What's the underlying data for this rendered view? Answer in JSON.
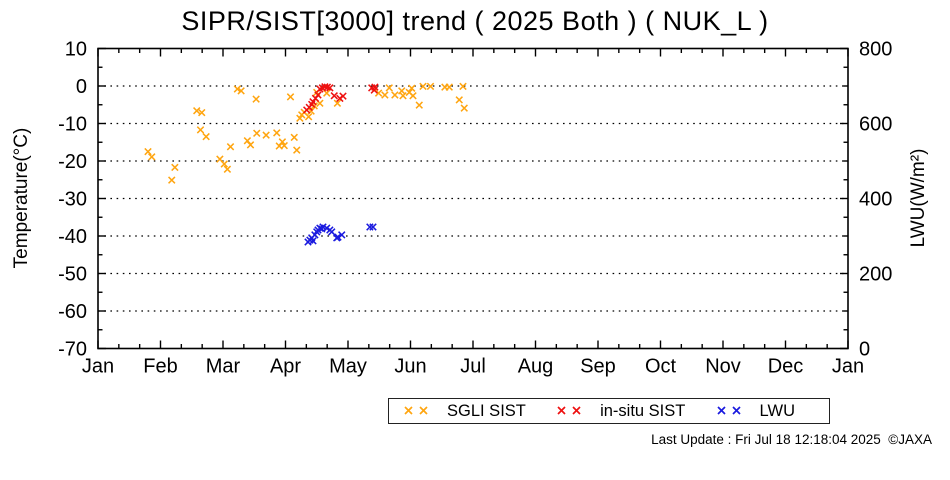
{
  "footer": {
    "last_update": "Last Update : Fri Jul 18 12:18:04 2025  ©JAXA"
  },
  "chart_data": {
    "type": "scatter",
    "title": "SIPR/SIST[3000] trend ( 2025 Both ) ( NUK_L )",
    "grid": "horizontal-dotted",
    "legend_position": "bottom",
    "x_axis": {
      "tick_labels": [
        "Jan",
        "Feb",
        "Mar",
        "Apr",
        "May",
        "Jun",
        "Jul",
        "Aug",
        "Sep",
        "Oct",
        "Nov",
        "Dec",
        "Jan"
      ],
      "range_months": [
        0,
        12
      ],
      "minor_divisions": 3
    },
    "y_left": {
      "label": "Temperature(°C)",
      "lim": [
        -70,
        10
      ],
      "ticks": [
        10,
        0,
        -10,
        -20,
        -30,
        -40,
        -50,
        -60,
        -70
      ],
      "minor_step": 5,
      "gridlines": [
        0,
        -10,
        -20,
        -30,
        -40,
        -50,
        -60
      ]
    },
    "y_right": {
      "label": "LWU(W/m²)",
      "lim": [
        0,
        800
      ],
      "ticks": [
        800,
        600,
        400,
        200,
        0
      ],
      "minor_step": 50,
      "major_step": 200
    },
    "legend": [
      {
        "name": "SGLI SIST",
        "color": "#FFA510",
        "marker": "x"
      },
      {
        "name": "in-situ SIST",
        "color": "#EE1111",
        "marker": "x"
      },
      {
        "name": "LWU",
        "color": "#1A1ADF",
        "marker": "x"
      }
    ],
    "series": [
      {
        "name": "SGLI SIST",
        "axis": "left",
        "color": "#FFA510",
        "marker": "x",
        "points": [
          [
            0.8,
            -17.5
          ],
          [
            0.86,
            -18.9
          ],
          [
            1.18,
            -25.1
          ],
          [
            1.23,
            -21.7
          ],
          [
            1.58,
            -6.6
          ],
          [
            1.66,
            -7.1
          ],
          [
            1.64,
            -11.7
          ],
          [
            1.73,
            -13.5
          ],
          [
            1.95,
            -19.5
          ],
          [
            2.02,
            -20.8
          ],
          [
            2.07,
            -22.2
          ],
          [
            2.12,
            -16.2
          ],
          [
            2.23,
            -0.8
          ],
          [
            2.29,
            -1.3
          ],
          [
            2.39,
            -14.6
          ],
          [
            2.44,
            -15.7
          ],
          [
            2.53,
            -3.5
          ],
          [
            2.54,
            -12.6
          ],
          [
            2.69,
            -13.1
          ],
          [
            2.86,
            -12.5
          ],
          [
            2.9,
            -16.0
          ],
          [
            2.95,
            -14.9
          ],
          [
            2.98,
            -15.9
          ],
          [
            3.08,
            -2.9
          ],
          [
            3.14,
            -13.7
          ],
          [
            3.18,
            -17.1
          ],
          [
            3.23,
            -8.6
          ],
          [
            3.26,
            -7.7
          ],
          [
            3.3,
            -7.0
          ],
          [
            3.37,
            -8.2
          ],
          [
            3.41,
            -6.7
          ],
          [
            3.46,
            -5.3
          ],
          [
            3.5,
            -1.7
          ],
          [
            3.55,
            -4.6
          ],
          [
            3.66,
            -1.9
          ],
          [
            3.83,
            -4.6
          ],
          [
            4.49,
            -1.9
          ],
          [
            4.59,
            -2.4
          ],
          [
            4.66,
            -0.5
          ],
          [
            4.75,
            -2.4
          ],
          [
            4.86,
            -1.3
          ],
          [
            4.88,
            -2.6
          ],
          [
            4.98,
            -1.7
          ],
          [
            5.02,
            -0.6
          ],
          [
            5.04,
            -2.6
          ],
          [
            5.14,
            -5.1
          ],
          [
            5.2,
            -0.1
          ],
          [
            5.32,
            -0.1
          ],
          [
            5.55,
            -0.3
          ],
          [
            5.62,
            -0.3
          ],
          [
            5.78,
            -3.7
          ],
          [
            5.84,
            -0.1
          ],
          [
            5.86,
            -5.9
          ]
        ]
      },
      {
        "name": "in-situ SIST",
        "axis": "left",
        "color": "#EE1111",
        "marker": "x",
        "points": [
          [
            3.34,
            -6.4
          ],
          [
            3.38,
            -5.7
          ],
          [
            3.42,
            -4.9
          ],
          [
            3.44,
            -4.2
          ],
          [
            3.48,
            -3.3
          ],
          [
            3.52,
            -2.4
          ],
          [
            3.55,
            -0.8
          ],
          [
            3.59,
            -0.5
          ],
          [
            3.63,
            -0.2
          ],
          [
            3.67,
            -0.3
          ],
          [
            3.71,
            -0.5
          ],
          [
            3.78,
            -2.6
          ],
          [
            3.87,
            -3.3
          ],
          [
            3.92,
            -2.7
          ],
          [
            4.38,
            -0.5
          ],
          [
            4.42,
            -1.1
          ],
          [
            4.43,
            -0.3
          ]
        ]
      },
      {
        "name": "LWU",
        "axis": "right",
        "color": "#1A1ADF",
        "marker": "x",
        "points": [
          [
            3.36,
            284
          ],
          [
            3.39,
            289
          ],
          [
            3.42,
            295
          ],
          [
            3.44,
            287
          ],
          [
            3.47,
            303
          ],
          [
            3.5,
            311
          ],
          [
            3.52,
            316
          ],
          [
            3.55,
            321
          ],
          [
            3.58,
            319
          ],
          [
            3.6,
            324
          ],
          [
            3.66,
            321
          ],
          [
            3.71,
            316
          ],
          [
            3.74,
            311
          ],
          [
            3.82,
            295
          ],
          [
            3.84,
            297
          ],
          [
            3.9,
            303
          ],
          [
            4.35,
            324
          ],
          [
            4.4,
            324
          ]
        ]
      }
    ]
  }
}
